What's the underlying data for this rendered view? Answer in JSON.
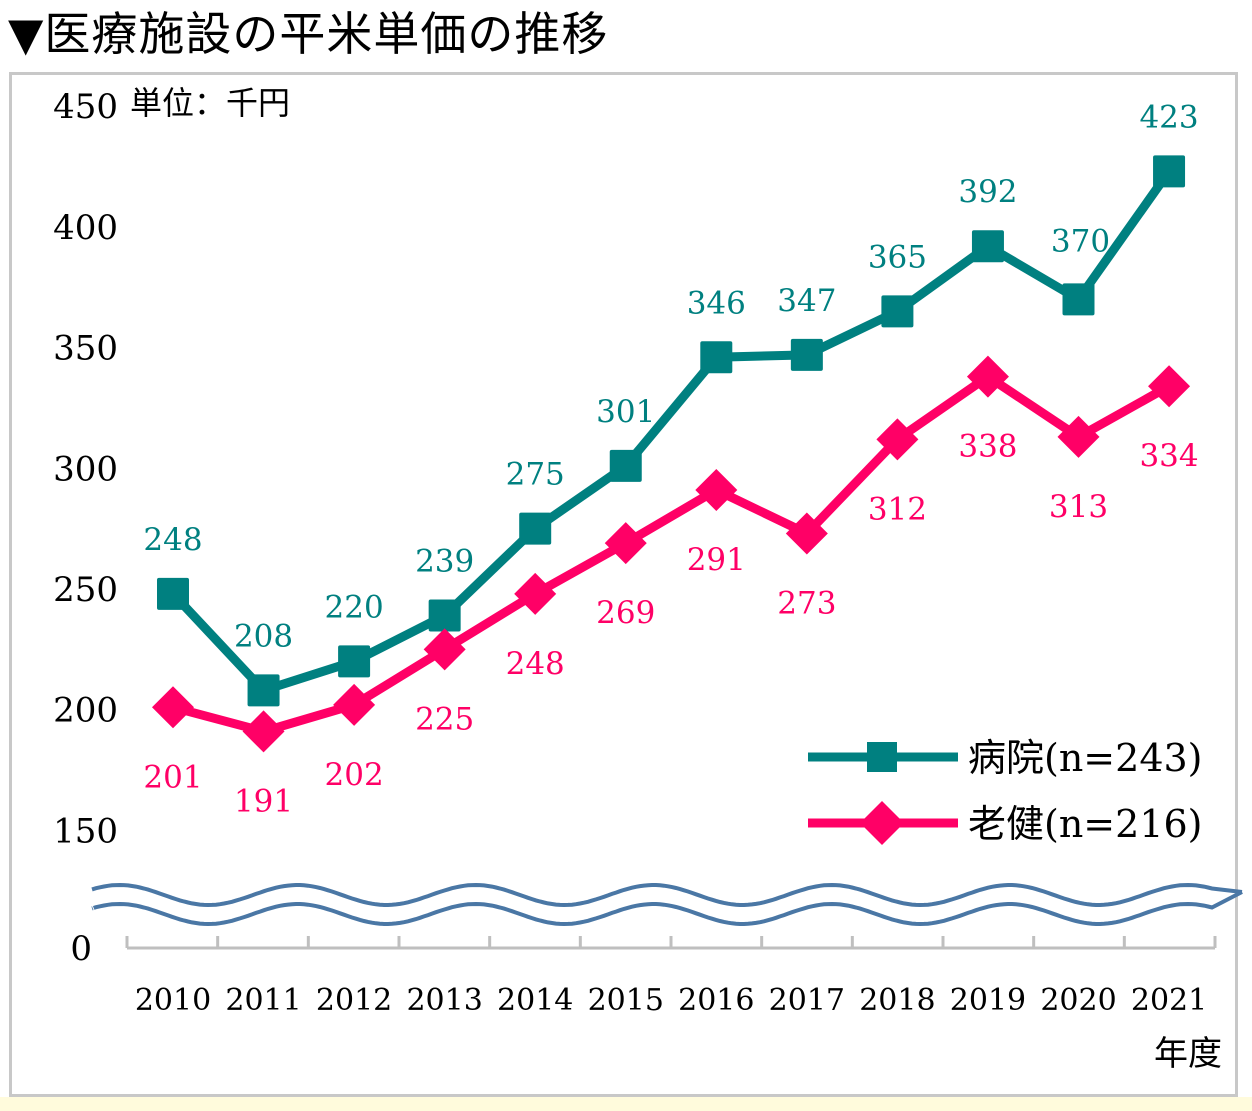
{
  "title": "▼医療施設の平米単価の推移",
  "chart_data": {
    "type": "line",
    "title": "▼医療施設の平米単価の推移",
    "unit_label": "単位：千円",
    "xlabel": "年度",
    "ylabel": "",
    "categories": [
      "2010",
      "2011",
      "2012",
      "2013",
      "2014",
      "2015",
      "2016",
      "2017",
      "2018",
      "2019",
      "2020",
      "2021"
    ],
    "y_ticks": [
      "0",
      "150",
      "200",
      "250",
      "300",
      "350",
      "400",
      "450"
    ],
    "ylim": [
      150,
      450
    ],
    "axis_break": true,
    "grid": false,
    "legend_position": "bottom-right",
    "series": [
      {
        "name": "病院(n=243)",
        "color": "#008080",
        "marker": "square",
        "label_position": "above",
        "values": [
          248,
          208,
          220,
          239,
          275,
          301,
          346,
          347,
          365,
          392,
          370,
          423
        ]
      },
      {
        "name": "老健(n=216)",
        "color": "#ff0066",
        "marker": "diamond",
        "label_position": "below",
        "values": [
          201,
          191,
          202,
          225,
          248,
          269,
          291,
          273,
          312,
          338,
          313,
          334
        ]
      }
    ]
  }
}
